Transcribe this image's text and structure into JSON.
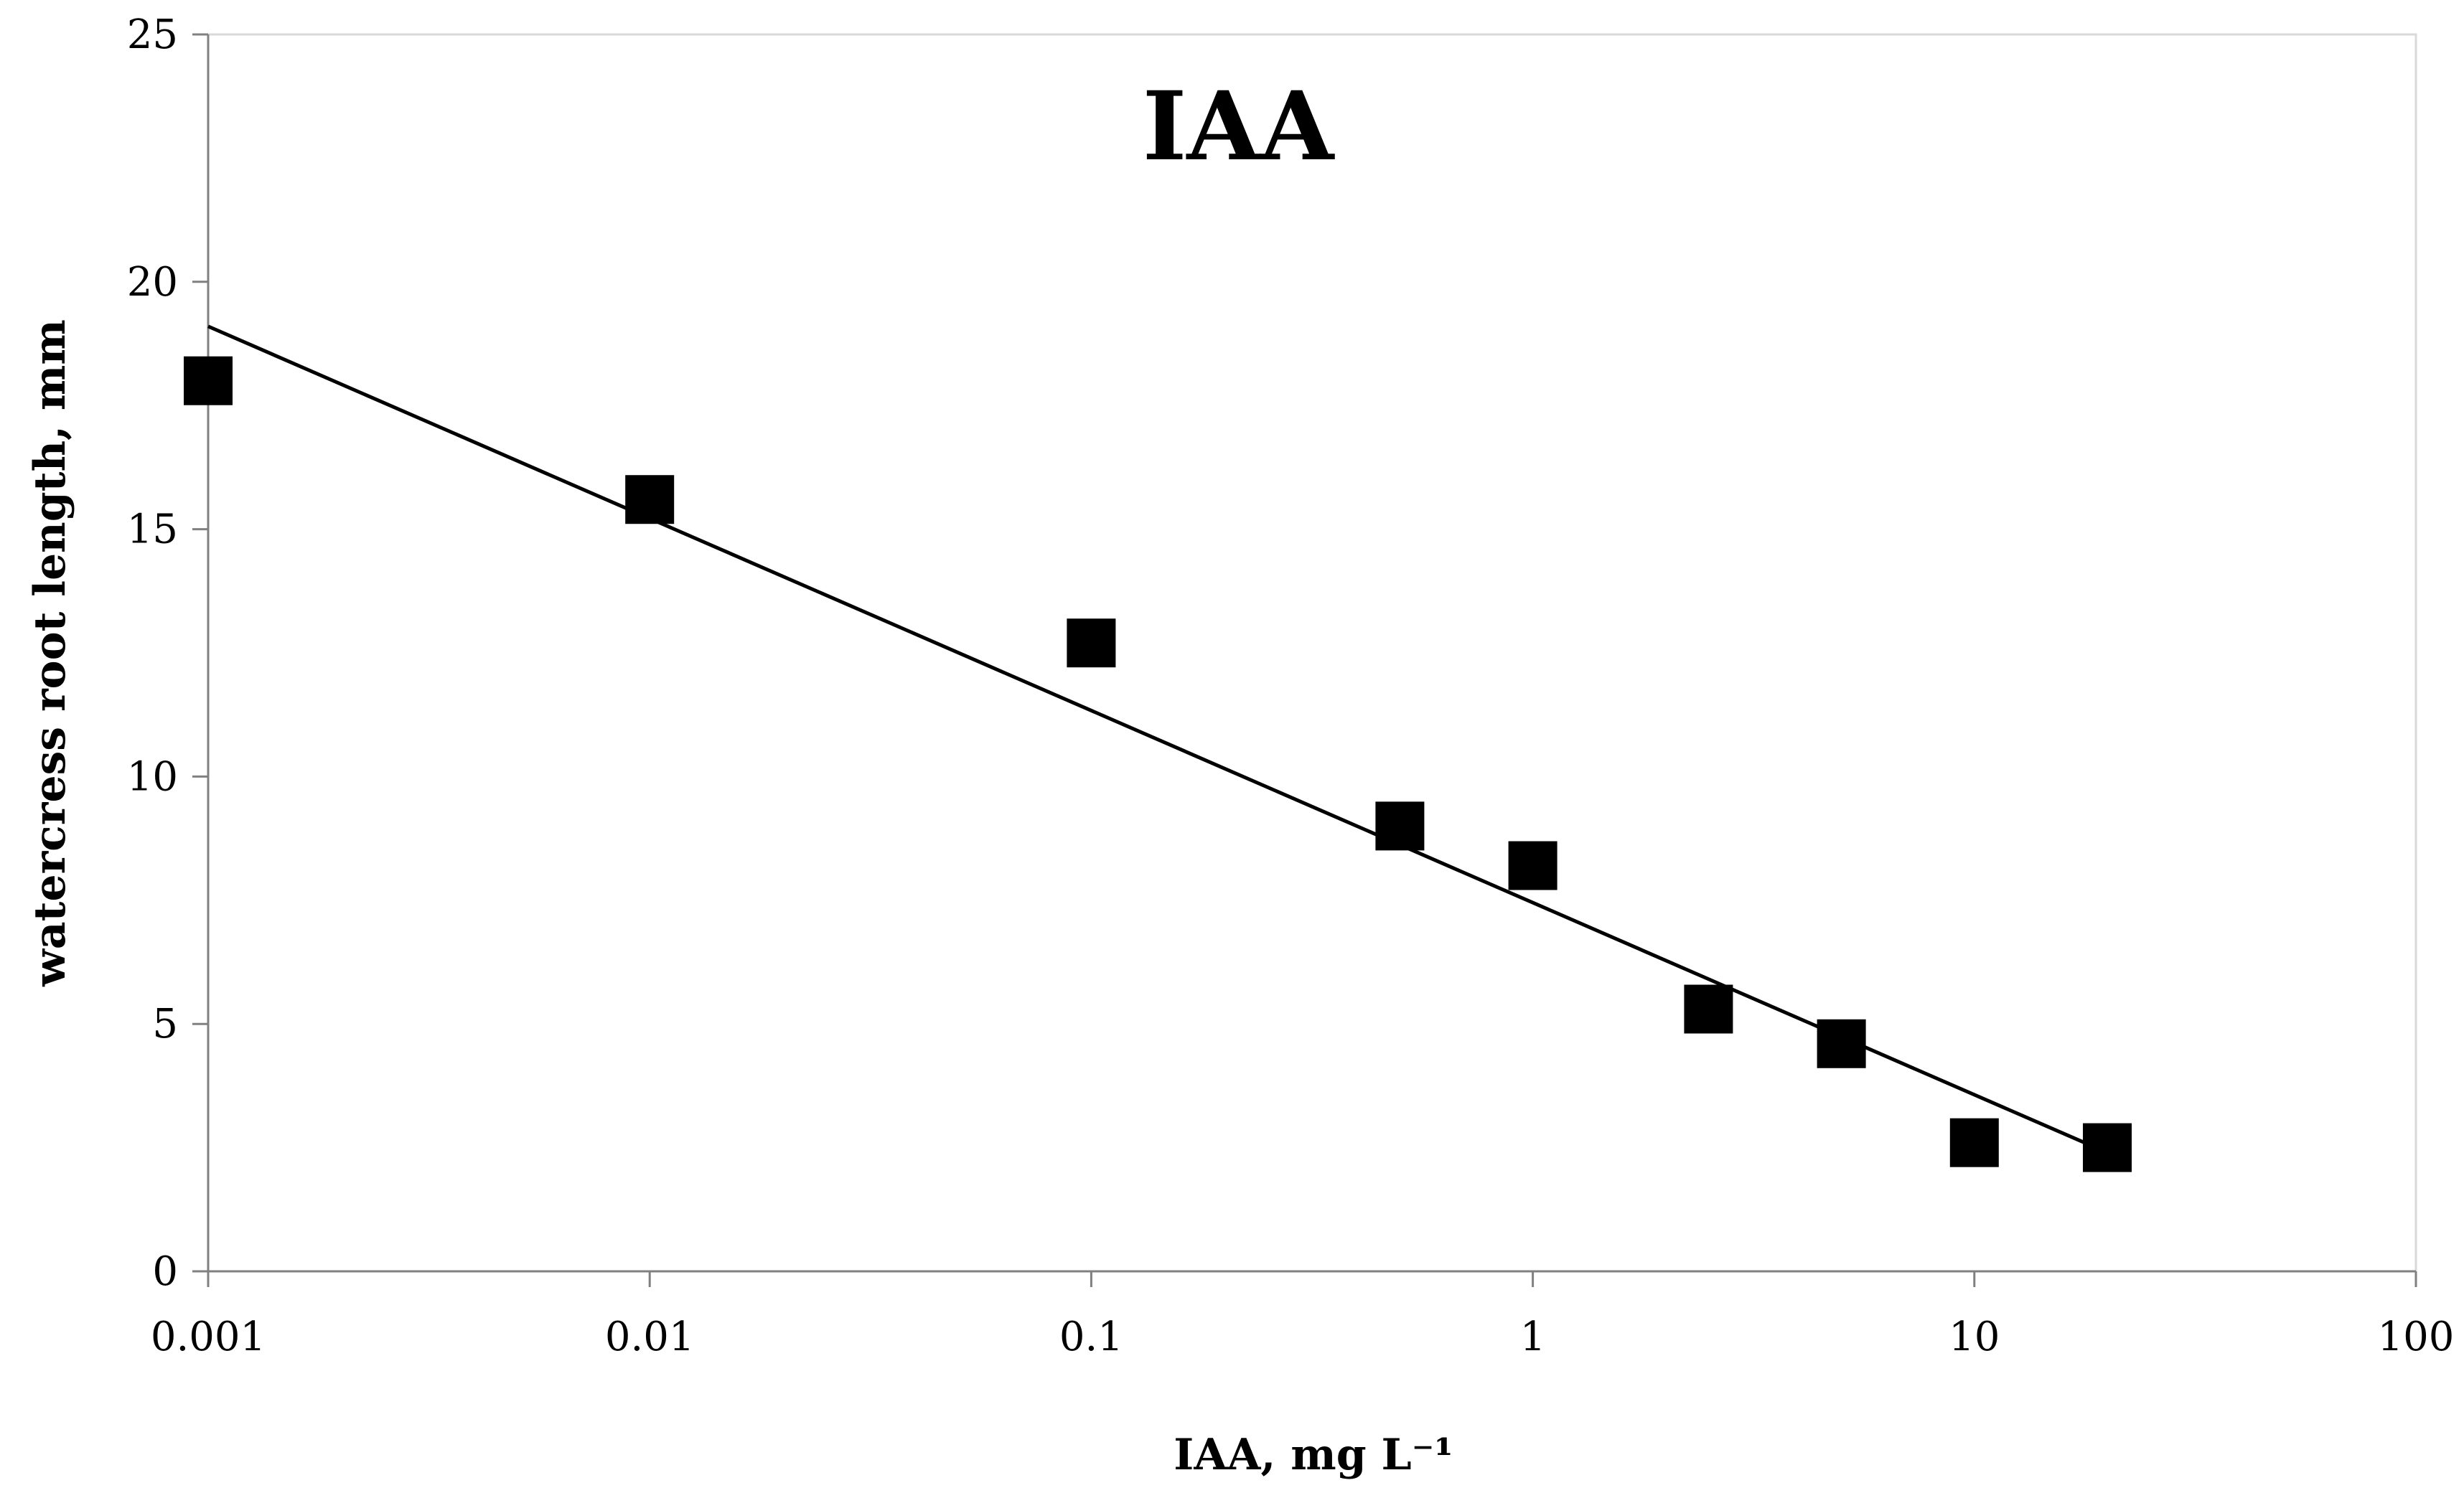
{
  "chart_data": {
    "type": "scatter",
    "title": "IAA",
    "xlabel": "IAA, mg L⁻¹",
    "ylabel": "watercress root length, mm",
    "xscale": "log",
    "xlim": [
      0.001,
      100
    ],
    "ylim": [
      0,
      25
    ],
    "x_ticks": [
      0.001,
      0.01,
      0.1,
      1,
      10,
      100
    ],
    "x_tick_labels": [
      "0.001",
      "0.01",
      "0.1",
      "1",
      "10",
      "100"
    ],
    "y_ticks": [
      0,
      5,
      10,
      15,
      20,
      25
    ],
    "y_tick_labels": [
      "0",
      "5",
      "10",
      "15",
      "20",
      "25"
    ],
    "grid": false,
    "series": [
      {
        "name": "IAA",
        "marker": "square",
        "color": "#000000",
        "points": [
          {
            "x": 0.001,
            "y": 18.0
          },
          {
            "x": 0.01,
            "y": 15.6
          },
          {
            "x": 0.1,
            "y": 12.7
          },
          {
            "x": 0.5,
            "y": 9.0
          },
          {
            "x": 1,
            "y": 8.2
          },
          {
            "x": 2.5,
            "y": 5.3
          },
          {
            "x": 5,
            "y": 4.6
          },
          {
            "x": 10,
            "y": 2.6
          },
          {
            "x": 20,
            "y": 2.5
          }
        ]
      }
    ],
    "trendline": {
      "type": "logarithmic",
      "color": "#000000",
      "x_start": 0.001,
      "y_start": 19.1,
      "x_end": 20,
      "y_end": 2.4
    }
  }
}
